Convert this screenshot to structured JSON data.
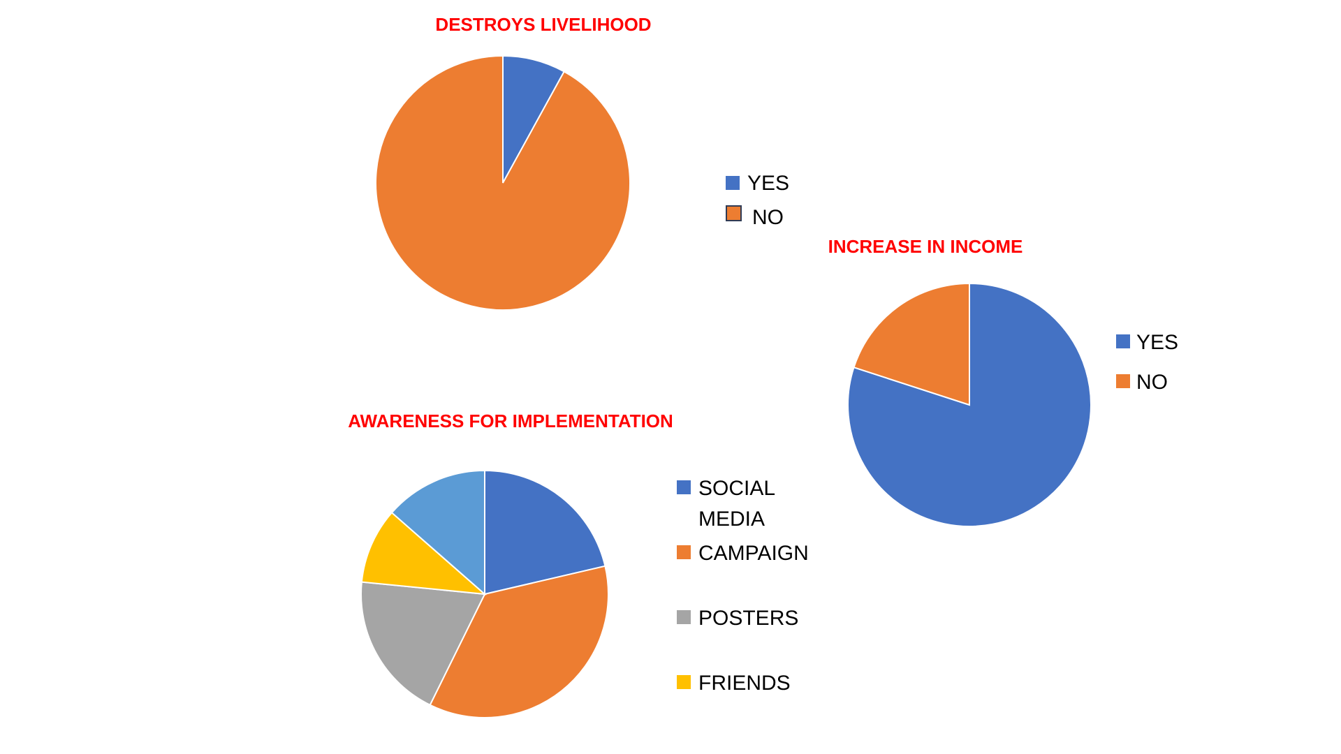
{
  "chart_data": [
    {
      "type": "pie",
      "title": "DESTROYS LIVELIHOOD",
      "categories": [
        "YES",
        "NO"
      ],
      "values": [
        8,
        92
      ],
      "colors": [
        "#4472c4",
        "#ed7d31"
      ],
      "legend": "right"
    },
    {
      "type": "pie",
      "title": "INCREASE IN INCOME",
      "categories": [
        "YES",
        "NO"
      ],
      "values": [
        80,
        20
      ],
      "colors": [
        "#4472c4",
        "#ed7d31"
      ],
      "legend": "right"
    },
    {
      "type": "pie",
      "title": "AWARENESS FOR IMPLEMENTATION",
      "categories": [
        "SOCIAL MEDIA",
        "CAMPAIGN",
        "POSTERS",
        "FRIENDS",
        ""
      ],
      "legend_labels": [
        [
          "SOCIAL",
          "MEDIA"
        ],
        [
          "CAMPAIGN"
        ],
        [
          "POSTERS"
        ],
        [
          "FRIENDS"
        ]
      ],
      "values": [
        20.5,
        34.5,
        18.5,
        9.5,
        13
      ],
      "colors": [
        "#4472c4",
        "#ed7d31",
        "#a5a5a5",
        "#ffc000",
        "#5b9bd5"
      ],
      "legend": "right"
    }
  ]
}
